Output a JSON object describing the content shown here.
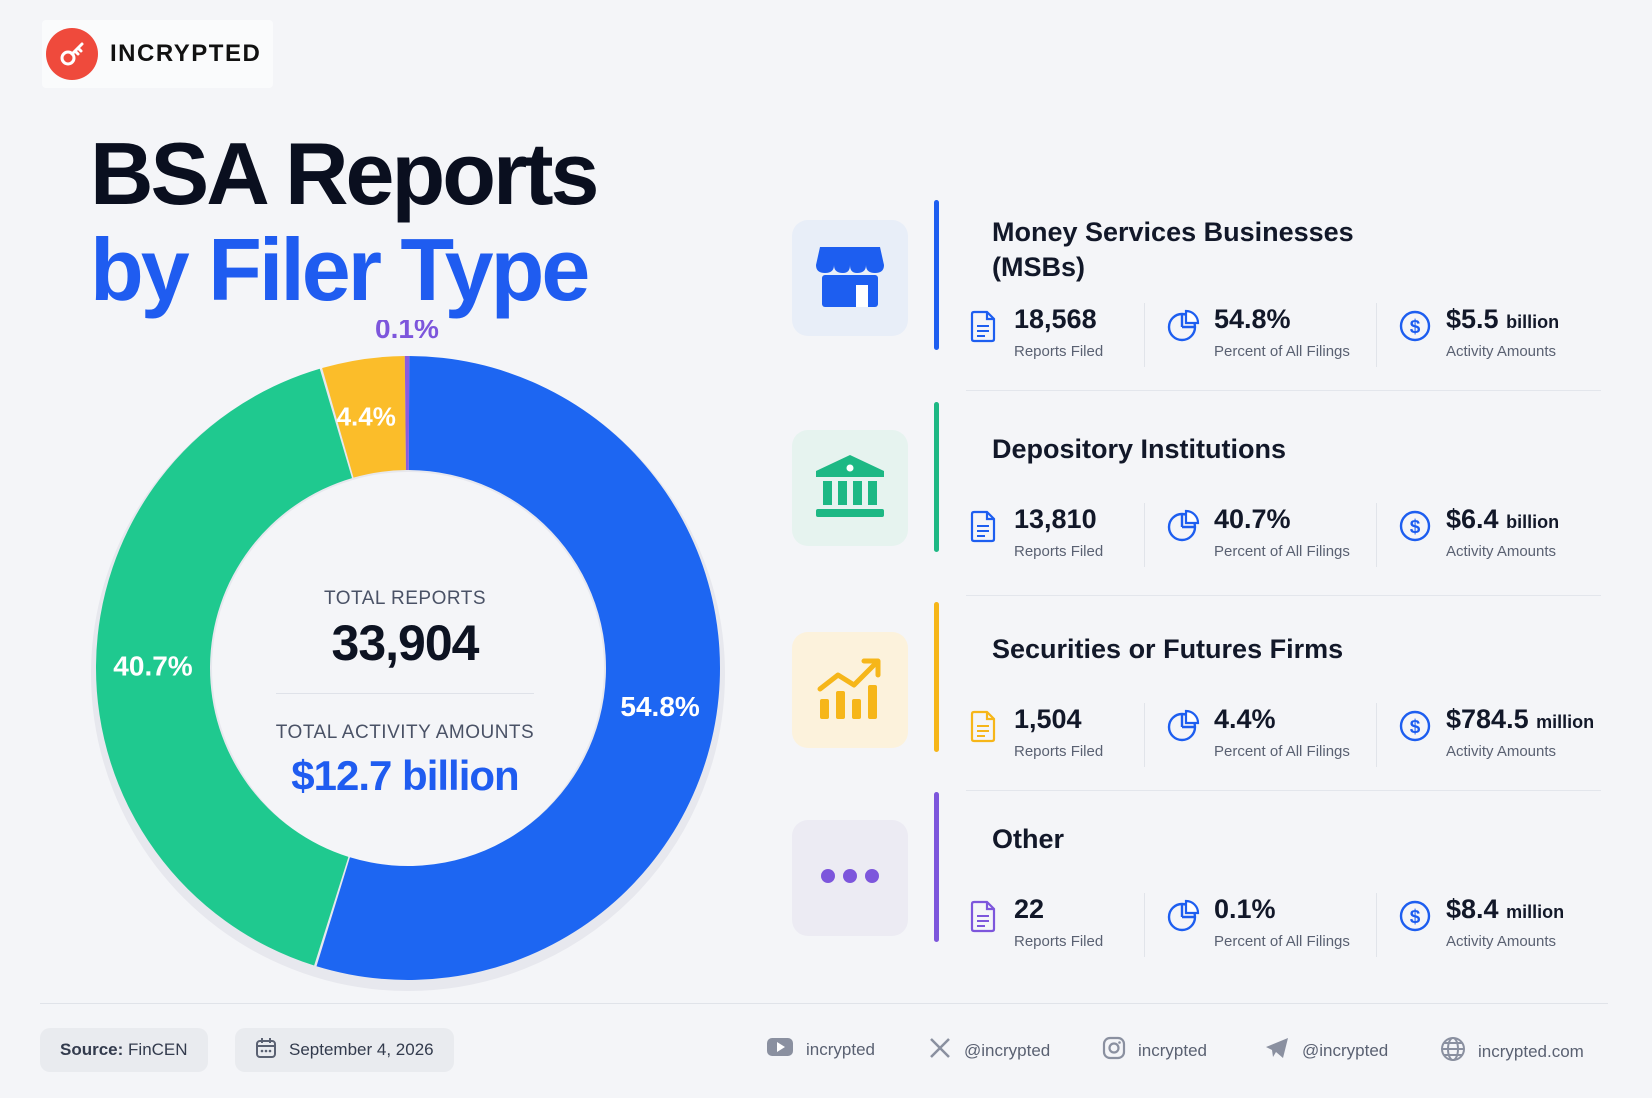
{
  "brand": {
    "name": "INCRYPTED"
  },
  "title": {
    "line1": "BSA Reports",
    "line2": "by Filer Type"
  },
  "summary": {
    "total_reports_label": "TOTAL REPORTS",
    "total_reports_value": "33,904",
    "total_activity_label": "TOTAL ACTIVITY AMOUNTS",
    "total_activity_value": "$12.7 billion"
  },
  "chart_data": {
    "type": "pie",
    "variant": "donut",
    "categories": [
      "Money Services Businesses (MSBs)",
      "Depository Institutions",
      "Securities or Futures Firms",
      "Other"
    ],
    "values": [
      54.8,
      40.7,
      4.4,
      0.1
    ],
    "labels": [
      "54.8%",
      "40.7%",
      "4.4%",
      "0.1%"
    ],
    "colors": [
      "#1d66f2",
      "#1fc98f",
      "#fbbd2a",
      "#8a5ce0"
    ]
  },
  "categories": [
    {
      "name_line1": "Money Services Businesses",
      "name_line2": "(MSBs)",
      "icon": "storefront-icon",
      "color": "#1d5ef0",
      "bg": "#e8eef8",
      "reports": "18,568",
      "reports_label": "Reports Filed",
      "percent": "54.8%",
      "percent_label": "Percent of All Filings",
      "amount": "$5.5",
      "amount_unit": "billion",
      "amount_label": "Activity Amounts"
    },
    {
      "name_line1": "Depository Institutions",
      "name_line2": "",
      "icon": "bank-icon",
      "color": "#1db884",
      "bg": "#e6f3ef",
      "reports": "13,810",
      "reports_label": "Reports Filed",
      "percent": "40.7%",
      "percent_label": "Percent of All Filings",
      "amount": "$6.4",
      "amount_unit": "billion",
      "amount_label": "Activity Amounts"
    },
    {
      "name_line1": "Securities or Futures Firms",
      "name_line2": "",
      "icon": "growth-chart-icon",
      "color": "#f6b619",
      "bg": "#fcf2dc",
      "reports": "1,504",
      "reports_label": "Reports Filed",
      "percent": "4.4%",
      "percent_label": "Percent of All Filings",
      "amount": "$784.5",
      "amount_unit": "million",
      "amount_label": "Activity Amounts"
    },
    {
      "name_line1": "Other",
      "name_line2": "",
      "icon": "more-dots-icon",
      "color": "#7d56dc",
      "bg": "#ecebf3",
      "reports": "22",
      "reports_label": "Reports Filed",
      "percent": "0.1%",
      "percent_label": "Percent of All Filings",
      "amount": "$8.4",
      "amount_unit": "million",
      "amount_label": "Activity Amounts"
    }
  ],
  "footer": {
    "source_label": "Source:",
    "source_value": "FinCEN",
    "date": "September 4, 2026",
    "social": [
      {
        "icon": "youtube-icon",
        "text": "incrypted"
      },
      {
        "icon": "x-icon",
        "text": "@incrypted"
      },
      {
        "icon": "instagram-icon",
        "text": "incrypted"
      },
      {
        "icon": "telegram-icon",
        "text": "@incrypted"
      },
      {
        "icon": "globe-icon",
        "text": "incrypted.com"
      }
    ]
  }
}
